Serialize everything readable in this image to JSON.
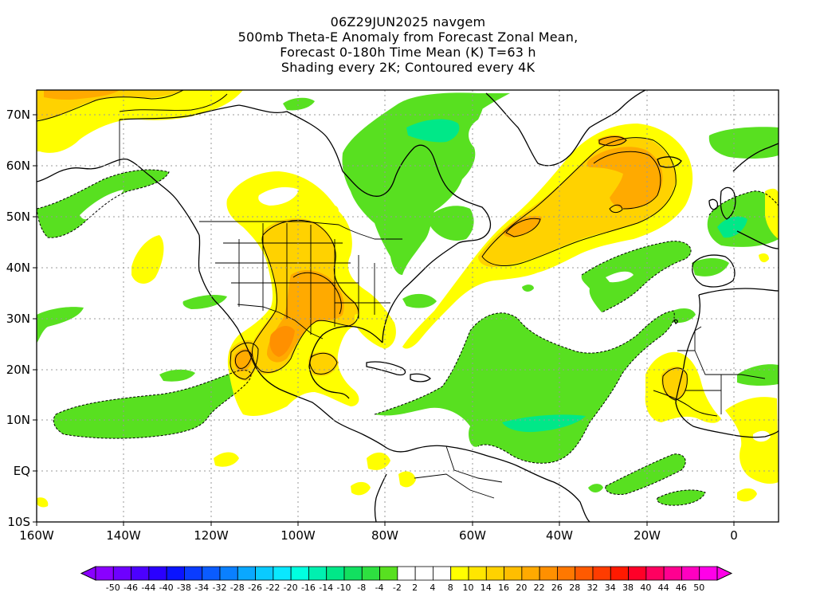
{
  "title": {
    "line1": "06Z29JUN2025 navgem",
    "line2": "500mb Theta-E Anomaly from Forecast Zonal Mean,",
    "line3": "Forecast 0-180h Time Mean (K) T=63 h",
    "line4": "Shading every 2K; Contoured every 4K"
  },
  "map": {
    "projection": "cylindrical",
    "lon_range": [
      -160,
      10
    ],
    "lat_range": [
      -10,
      75
    ],
    "lat_labels": [
      "70N",
      "60N",
      "50N",
      "40N",
      "30N",
      "20N",
      "10N",
      "EQ",
      "10S"
    ],
    "lon_labels": [
      "160W",
      "140W",
      "120W",
      "100W",
      "80W",
      "60W",
      "40W",
      "20W",
      "0"
    ],
    "gridlines": "dotted"
  },
  "colorbar": {
    "labels": [
      "-50",
      "-46",
      "-44",
      "-40",
      "-38",
      "-34",
      "-32",
      "-28",
      "-26",
      "-22",
      "-20",
      "-16",
      "-14",
      "-10",
      "-8",
      "-4",
      "-2",
      "2",
      "4",
      "8",
      "10",
      "14",
      "16",
      "20",
      "22",
      "26",
      "28",
      "32",
      "34",
      "38",
      "40",
      "44",
      "46",
      "50"
    ],
    "colors": [
      "#8a00ff",
      "#6e00ff",
      "#4c00ff",
      "#2a00ff",
      "#0a14ff",
      "#0a3cff",
      "#0a5cff",
      "#0a80ff",
      "#0aa8ff",
      "#0acaff",
      "#0ae8ff",
      "#00ffe0",
      "#00f0b0",
      "#00e888",
      "#12e060",
      "#2ee040",
      "#58e020",
      "#ffffff",
      "#ffffff",
      "#ffffff",
      "#ffff00",
      "#ffe600",
      "#ffd200",
      "#ffbe00",
      "#ffaa00",
      "#ff9000",
      "#ff7800",
      "#ff5a00",
      "#ff3c00",
      "#ff1a00",
      "#ff0028",
      "#ff0060",
      "#ff0090",
      "#ff00c0",
      "#ff00e8"
    ]
  },
  "colors": {
    "green": "#58e020",
    "dark_green": "#00e888",
    "yellow": "#ffff00",
    "gold": "#ffd200",
    "orange": "#ffaa00",
    "dark_orange": "#ff9000"
  }
}
